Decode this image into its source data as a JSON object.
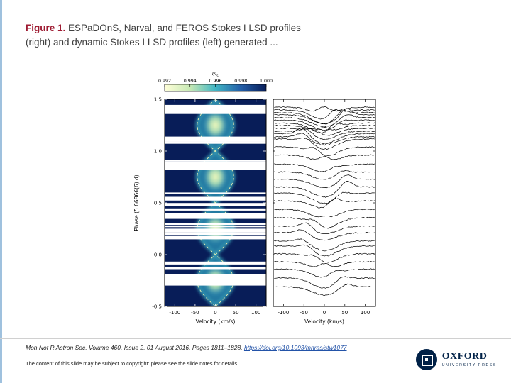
{
  "title": {
    "prefix": "Figure 1.",
    "line1_rest": " ESPaDOnS, Narval, and FEROS Stokes I LSD profiles",
    "line2": "(right) and dynamic Stokes I LSD profiles (left) generated ..."
  },
  "footer": {
    "citation_text": "Mon Not R Astron Soc, Volume 460, Issue 2, 01 August 2016, Pages 1811–1828, ",
    "citation_link": "https://doi.org/10.1093/mnras/stw1077",
    "copyright": "The content of this slide may be subject to copyright: please see the slide notes for details."
  },
  "logo": {
    "name": "OXFORD",
    "subname": "UNIVERSITY PRESS"
  },
  "colors": {
    "figure_label_red": "#9e1b32",
    "link_blue": "#2353a8",
    "oxford_blue": "#002147",
    "accent_bar_blue": "#9fc1de",
    "heatmap_background": "#081d58"
  },
  "chart_data": [
    {
      "type": "heatmap",
      "panel": "left",
      "description": "Dynamic Stokes I LSD profiles: residual intensity versus velocity and rotational phase with dashed sinusoidal outline of the migrating feature",
      "xlabel": "Velocity (km/s)",
      "ylabel": "Phase (5.66866(6) d)",
      "x_range": [
        -125,
        125
      ],
      "xticks": [
        -100,
        -50,
        0,
        50,
        100
      ],
      "y_range": [
        -0.5,
        1.5
      ],
      "yticks": [
        1.5,
        1.0,
        0.5,
        0.0,
        -0.5
      ],
      "colorbar": {
        "label": "I/Ic",
        "ticks": [
          0.992,
          0.994,
          0.996,
          0.998,
          1.0
        ],
        "colormap": [
          "#ffffd9",
          "#c7e9b4",
          "#41b6c4",
          "#225ea8",
          "#081d58"
        ]
      },
      "feature": {
        "sinusoid_amplitude_kms": 45,
        "lens_center_phases": [
          -0.25,
          0.25,
          0.75,
          1.25
        ],
        "dashed_outline": true
      }
    },
    {
      "type": "line",
      "panel": "right",
      "description": "Stacked Stokes I LSD line profiles (black), densely clustered near the top, each showing a central absorption with a migrating sub-feature",
      "xlabel": "Velocity (km/s)",
      "x_range": [
        -125,
        125
      ],
      "xticks": [
        -100,
        -50,
        0,
        50,
        100
      ],
      "n_profiles": 32,
      "line_color": "#000000"
    }
  ]
}
